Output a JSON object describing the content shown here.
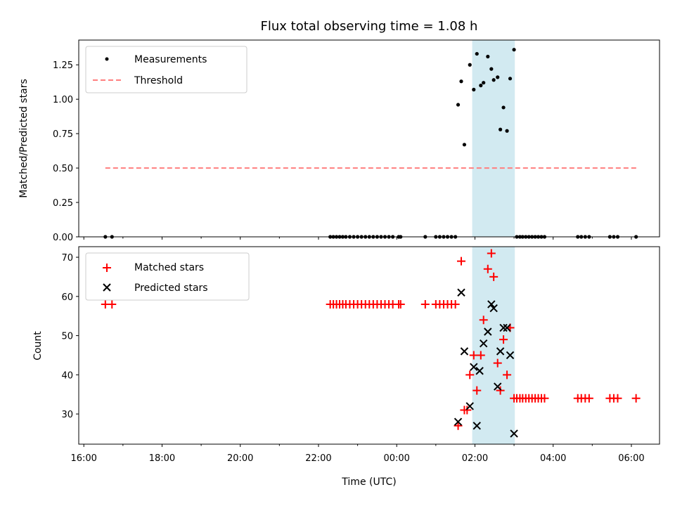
{
  "chart_data": {
    "type": "scatter",
    "title": "Flux total observing time = 1.08 h",
    "xlabel": "Time (UTC)",
    "x_ticks": [
      "16:00",
      "18:00",
      "20:00",
      "22:00",
      "00:00",
      "02:00",
      "04:00",
      "06:00"
    ],
    "x_tick_hours": [
      0,
      2,
      4,
      6,
      8,
      10,
      12,
      14
    ],
    "xlim_hours": [
      -0.13,
      14.72
    ],
    "highlight_span_hours": [
      9.93,
      11.02
    ],
    "top_panel": {
      "ylabel": "Matched/Predicted stars",
      "ylim": [
        0,
        1.43
      ],
      "y_ticks": [
        "0.00",
        "0.25",
        "0.50",
        "0.75",
        "1.00",
        "1.25"
      ],
      "y_tick_values": [
        0,
        0.25,
        0.5,
        0.75,
        1.0,
        1.25
      ],
      "legend": {
        "measurements": "Measurements",
        "threshold": "Threshold"
      },
      "threshold": {
        "value": 0.5,
        "x_from_hours": 0.55,
        "x_to_hours": 14.15
      },
      "measurements": [
        [
          0.55,
          0
        ],
        [
          0.72,
          0
        ],
        [
          6.3,
          0
        ],
        [
          6.38,
          0
        ],
        [
          6.46,
          0
        ],
        [
          6.54,
          0
        ],
        [
          6.62,
          0
        ],
        [
          6.7,
          0
        ],
        [
          6.8,
          0
        ],
        [
          6.9,
          0
        ],
        [
          7.0,
          0
        ],
        [
          7.1,
          0
        ],
        [
          7.2,
          0
        ],
        [
          7.3,
          0
        ],
        [
          7.4,
          0
        ],
        [
          7.5,
          0
        ],
        [
          7.6,
          0
        ],
        [
          7.7,
          0
        ],
        [
          7.8,
          0
        ],
        [
          7.9,
          0
        ],
        [
          8.05,
          0
        ],
        [
          8.1,
          0
        ],
        [
          8.73,
          0
        ],
        [
          9.0,
          0
        ],
        [
          9.1,
          0
        ],
        [
          9.2,
          0
        ],
        [
          9.3,
          0
        ],
        [
          9.4,
          0
        ],
        [
          9.5,
          0
        ],
        [
          9.57,
          0.96
        ],
        [
          9.65,
          1.13
        ],
        [
          9.73,
          0.67
        ],
        [
          9.87,
          1.25
        ],
        [
          9.97,
          1.07
        ],
        [
          10.05,
          1.33
        ],
        [
          10.15,
          1.1
        ],
        [
          10.22,
          1.12
        ],
        [
          10.33,
          1.31
        ],
        [
          10.42,
          1.22
        ],
        [
          10.48,
          1.14
        ],
        [
          10.58,
          1.16
        ],
        [
          10.65,
          0.78
        ],
        [
          10.73,
          0.94
        ],
        [
          10.82,
          0.77
        ],
        [
          10.9,
          1.15
        ],
        [
          11.0,
          1.36
        ],
        [
          11.07,
          0
        ],
        [
          11.15,
          0
        ],
        [
          11.22,
          0
        ],
        [
          11.3,
          0
        ],
        [
          11.38,
          0
        ],
        [
          11.46,
          0
        ],
        [
          11.54,
          0
        ],
        [
          11.62,
          0
        ],
        [
          11.7,
          0
        ],
        [
          11.78,
          0
        ],
        [
          12.63,
          0
        ],
        [
          12.72,
          0
        ],
        [
          12.82,
          0
        ],
        [
          12.92,
          0
        ],
        [
          13.45,
          0
        ],
        [
          13.55,
          0
        ],
        [
          13.65,
          0
        ],
        [
          14.12,
          0
        ]
      ]
    },
    "bottom_panel": {
      "ylabel": "Count",
      "ylim": [
        22.3,
        72.7
      ],
      "y_ticks": [
        "30",
        "40",
        "50",
        "60",
        "70"
      ],
      "y_tick_values": [
        30,
        40,
        50,
        60,
        70
      ],
      "legend": {
        "matched": "Matched stars",
        "predicted": "Predicted stars"
      },
      "series": [
        {
          "name": "Matched stars",
          "points": [
            [
              0.55,
              58
            ],
            [
              0.72,
              58
            ],
            [
              6.3,
              58
            ],
            [
              6.38,
              58
            ],
            [
              6.46,
              58
            ],
            [
              6.54,
              58
            ],
            [
              6.62,
              58
            ],
            [
              6.7,
              58
            ],
            [
              6.8,
              58
            ],
            [
              6.9,
              58
            ],
            [
              7.0,
              58
            ],
            [
              7.1,
              58
            ],
            [
              7.2,
              58
            ],
            [
              7.3,
              58
            ],
            [
              7.4,
              58
            ],
            [
              7.5,
              58
            ],
            [
              7.6,
              58
            ],
            [
              7.7,
              58
            ],
            [
              7.8,
              58
            ],
            [
              7.9,
              58
            ],
            [
              8.05,
              58
            ],
            [
              8.1,
              58
            ],
            [
              8.73,
              58
            ],
            [
              9.0,
              58
            ],
            [
              9.1,
              58
            ],
            [
              9.2,
              58
            ],
            [
              9.3,
              58
            ],
            [
              9.4,
              58
            ],
            [
              9.5,
              58
            ],
            [
              9.57,
              27
            ],
            [
              9.65,
              69
            ],
            [
              9.73,
              31
            ],
            [
              9.8,
              31
            ],
            [
              9.87,
              40
            ],
            [
              9.97,
              45
            ],
            [
              10.05,
              36
            ],
            [
              10.15,
              45
            ],
            [
              10.22,
              54
            ],
            [
              10.33,
              67
            ],
            [
              10.42,
              71
            ],
            [
              10.48,
              65
            ],
            [
              10.58,
              43
            ],
            [
              10.65,
              36
            ],
            [
              10.73,
              49
            ],
            [
              10.82,
              40
            ],
            [
              10.9,
              52
            ],
            [
              11.0,
              34
            ],
            [
              11.07,
              34
            ],
            [
              11.15,
              34
            ],
            [
              11.22,
              34
            ],
            [
              11.3,
              34
            ],
            [
              11.38,
              34
            ],
            [
              11.46,
              34
            ],
            [
              11.54,
              34
            ],
            [
              11.62,
              34
            ],
            [
              11.7,
              34
            ],
            [
              11.78,
              34
            ],
            [
              12.63,
              34
            ],
            [
              12.72,
              34
            ],
            [
              12.82,
              34
            ],
            [
              12.92,
              34
            ],
            [
              13.45,
              34
            ],
            [
              13.55,
              34
            ],
            [
              13.65,
              34
            ],
            [
              14.12,
              34
            ]
          ]
        },
        {
          "name": "Predicted stars",
          "points": [
            [
              9.57,
              28
            ],
            [
              9.65,
              61
            ],
            [
              9.73,
              46
            ],
            [
              9.87,
              32
            ],
            [
              9.97,
              42
            ],
            [
              10.05,
              27
            ],
            [
              10.12,
              41
            ],
            [
              10.22,
              48
            ],
            [
              10.33,
              51
            ],
            [
              10.42,
              58
            ],
            [
              10.48,
              57
            ],
            [
              10.58,
              37
            ],
            [
              10.65,
              46
            ],
            [
              10.73,
              52
            ],
            [
              10.82,
              52
            ],
            [
              10.9,
              45
            ],
            [
              11.0,
              25
            ]
          ]
        }
      ]
    }
  }
}
